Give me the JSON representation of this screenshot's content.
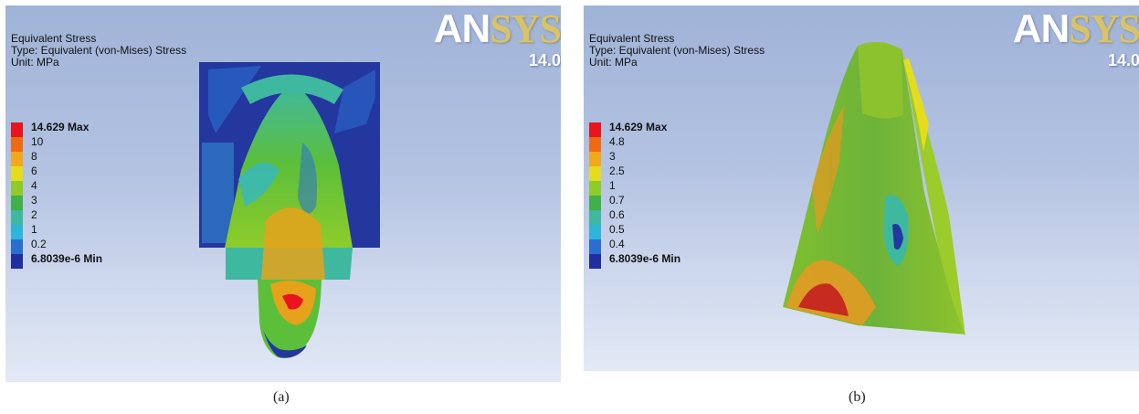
{
  "panel_a": {
    "info_title": "Equivalent Stress",
    "info_type": "Type: Equivalent (von-Mises) Stress",
    "info_unit": "Unit: MPa",
    "brand_an": "AN",
    "brand_sys": "SYS",
    "version": "14.0",
    "legend": [
      {
        "label": "14.629 Max",
        "color": "#e8141e",
        "bold": true
      },
      {
        "label": "10",
        "color": "#f06a12",
        "bold": false
      },
      {
        "label": "8",
        "color": "#f2a81a",
        "bold": false
      },
      {
        "label": "6",
        "color": "#e6dc1e",
        "bold": false
      },
      {
        "label": "4",
        "color": "#8fcc2a",
        "bold": false
      },
      {
        "label": "3",
        "color": "#3fb04a",
        "bold": false
      },
      {
        "label": "2",
        "color": "#3fb8a0",
        "bold": false
      },
      {
        "label": "1",
        "color": "#2eb6d8",
        "bold": false
      },
      {
        "label": "0.2",
        "color": "#2a6fd0",
        "bold": false
      },
      {
        "label": "6.8039e-6 Min",
        "color": "#1f2f9e",
        "bold": true
      }
    ],
    "caption": "(a)"
  },
  "panel_b": {
    "info_title": "Equivalent Stress",
    "info_type": "Type: Equivalent (von-Mises) Stress",
    "info_unit": "Unit: MPa",
    "brand_an": "AN",
    "brand_sys": "SYS",
    "version": "14.0",
    "legend": [
      {
        "label": "14.629 Max",
        "color": "#e8141e",
        "bold": true
      },
      {
        "label": "4.8",
        "color": "#f06a12",
        "bold": false
      },
      {
        "label": "3",
        "color": "#f2a81a",
        "bold": false
      },
      {
        "label": "2.5",
        "color": "#e6dc1e",
        "bold": false
      },
      {
        "label": "1",
        "color": "#8fcc2a",
        "bold": false
      },
      {
        "label": "0.7",
        "color": "#3fb04a",
        "bold": false
      },
      {
        "label": "0.6",
        "color": "#3fb8a0",
        "bold": false
      },
      {
        "label": "0.5",
        "color": "#2eb6d8",
        "bold": false
      },
      {
        "label": "0.4",
        "color": "#2a6fd0",
        "bold": false
      },
      {
        "label": "6.8039e-6 Min",
        "color": "#1f2f9e",
        "bold": true
      }
    ],
    "caption": "(b)"
  }
}
